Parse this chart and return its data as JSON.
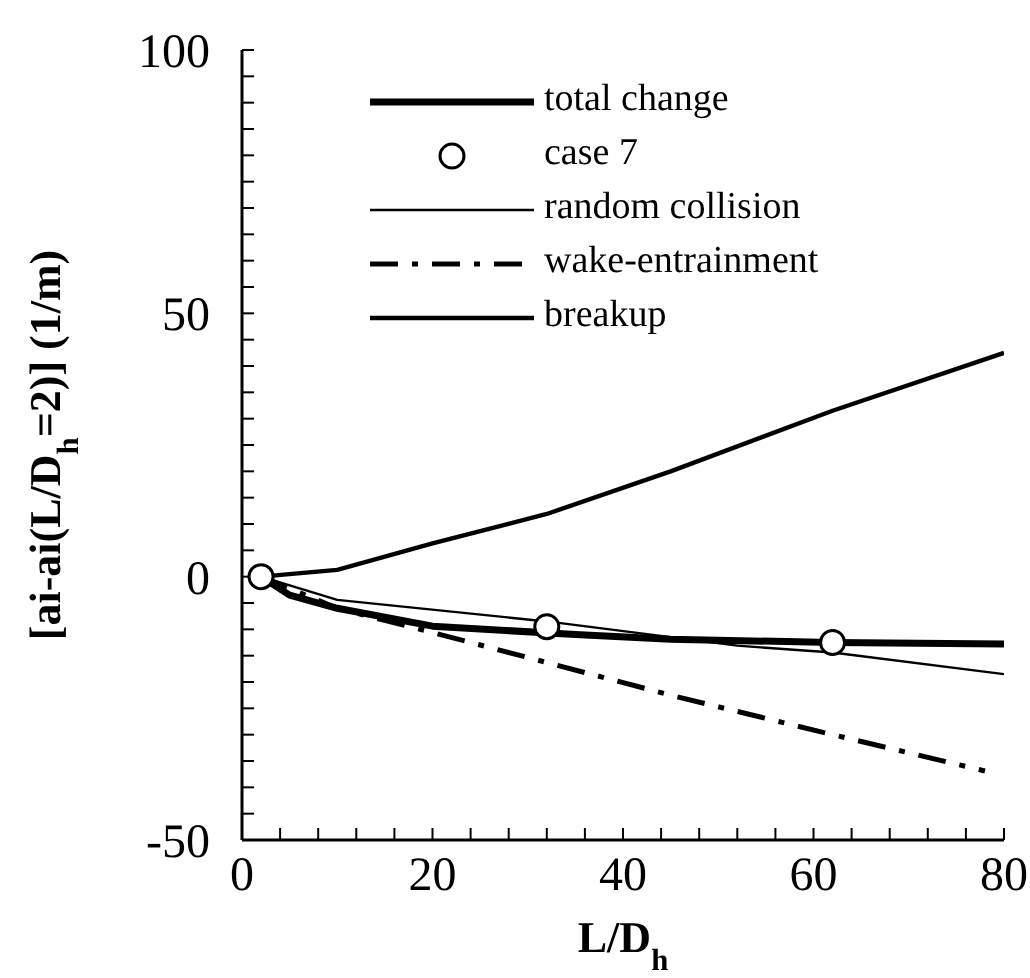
{
  "chart_data": {
    "type": "line",
    "xlabel": "L/D$_{h}$",
    "ylabel": "[ai-ai(L/D$_{h}$=2)] (1/m)",
    "xlim": [
      0,
      80
    ],
    "ylim": [
      -50,
      100
    ],
    "xticks": [
      0,
      {
        "value": 4,
        "label": null
      },
      {
        "value": 8,
        "label": null
      },
      {
        "value": 12,
        "label": null
      },
      {
        "value": 16,
        "label": null
      },
      20,
      {
        "value": 24,
        "label": null
      },
      {
        "value": 28,
        "label": null
      },
      {
        "value": 32,
        "label": null
      },
      {
        "value": 36,
        "label": null
      },
      40,
      {
        "value": 44,
        "label": null
      },
      {
        "value": 48,
        "label": null
      },
      {
        "value": 52,
        "label": null
      },
      {
        "value": 56,
        "label": null
      },
      60,
      {
        "value": 64,
        "label": null
      },
      {
        "value": 68,
        "label": null
      },
      {
        "value": 72,
        "label": null
      },
      {
        "value": 76,
        "label": null
      },
      80
    ],
    "yticks": [
      -50,
      {
        "value": -45,
        "label": null
      },
      {
        "value": -40,
        "label": null
      },
      {
        "value": -35,
        "label": null
      },
      {
        "value": -30,
        "label": null
      },
      {
        "value": -25,
        "label": null
      },
      {
        "value": -20,
        "label": null
      },
      {
        "value": -15,
        "label": null
      },
      {
        "value": -10,
        "label": null
      },
      {
        "value": -5,
        "label": null
      },
      0,
      {
        "value": 5,
        "label": null
      },
      {
        "value": 10,
        "label": null
      },
      {
        "value": 15,
        "label": null
      },
      {
        "value": 20,
        "label": null
      },
      {
        "value": 25,
        "label": null
      },
      {
        "value": 30,
        "label": null
      },
      {
        "value": 35,
        "label": null
      },
      {
        "value": 40,
        "label": null
      },
      {
        "value": 45,
        "label": null
      },
      50,
      {
        "value": 55,
        "label": null
      },
      {
        "value": 60,
        "label": null
      },
      {
        "value": 65,
        "label": null
      },
      {
        "value": 70,
        "label": null
      },
      {
        "value": 75,
        "label": null
      },
      {
        "value": 80,
        "label": null
      },
      {
        "value": 85,
        "label": null
      },
      {
        "value": 90,
        "label": null
      },
      {
        "value": 95,
        "label": null
      },
      100
    ],
    "legend": "top",
    "series": [
      {
        "name": "total change",
        "color": "#000000",
        "line_style": "solid",
        "marker": "none",
        "x": [
          2,
          5,
          10,
          20,
          35,
          45,
          62,
          80
        ],
        "values": [
          0,
          -3.5,
          -6,
          -9.4,
          -11,
          -11.9,
          -12.5,
          -12.8
        ]
      },
      {
        "name": "case 7",
        "type": "scatter",
        "color": "#000000",
        "marker": "circle",
        "x": [
          2,
          32,
          62
        ],
        "values": [
          0,
          -9.5,
          -12.5
        ]
      },
      {
        "name": "random collision",
        "color": "#000000",
        "line_style": "solid",
        "marker": "none",
        "x": [
          2,
          10,
          32,
          52,
          62,
          80
        ],
        "values": [
          0,
          -4.4,
          -8.5,
          -13.1,
          -14.4,
          -18.5
        ]
      },
      {
        "name": "wake-entrainment",
        "color": "#000000",
        "line_style": "dashed",
        "marker": "none",
        "x": [
          2,
          10,
          20,
          32,
          45,
          62,
          78
        ],
        "values": [
          0,
          -6,
          -10.6,
          -16.3,
          -22.5,
          -30,
          -36.9
        ]
      },
      {
        "name": "breakup",
        "color": "#000000",
        "line_style": "solid",
        "marker": "none",
        "x": [
          2,
          10,
          20,
          32,
          45,
          62,
          80
        ],
        "values": [
          0,
          1.3,
          6.3,
          11.9,
          20,
          31.5,
          42.5
        ]
      }
    ]
  }
}
